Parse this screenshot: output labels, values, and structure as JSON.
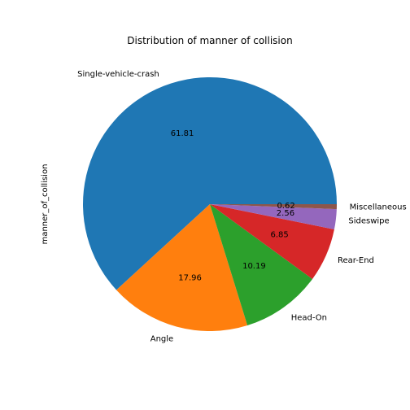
{
  "chart_data": {
    "type": "pie",
    "title": "Distribution of manner of collision",
    "ylabel": "manner_of_collision",
    "labels": [
      "Single-vehicle-crash",
      "Angle",
      "Head-On",
      "Rear-End",
      "Sideswipe",
      "Miscellaneous"
    ],
    "values": [
      61.81,
      17.96,
      10.19,
      6.85,
      2.56,
      0.62
    ],
    "value_labels": [
      "61.81",
      "17.96",
      "10.19",
      "6.85",
      "2.56",
      "0.62"
    ],
    "colors": [
      "#1f77b4",
      "#ff7f0e",
      "#2ca02c",
      "#d62728",
      "#9467bd",
      "#8c564b"
    ],
    "start_angle_deg": 0,
    "direction": "counterclockwise",
    "legend": "none"
  }
}
